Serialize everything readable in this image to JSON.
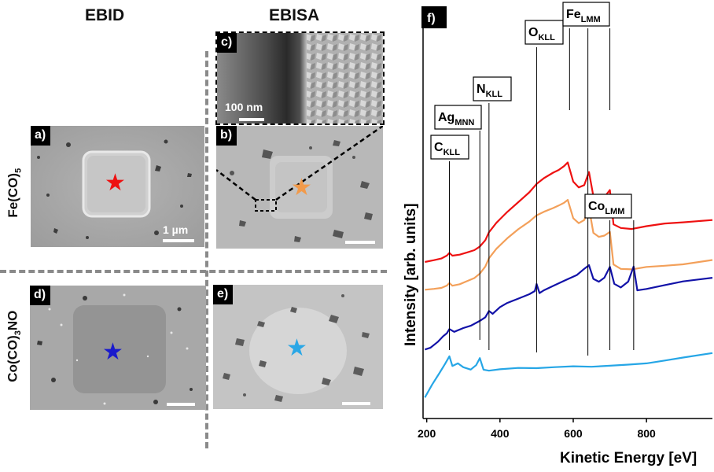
{
  "columns": {
    "left": "EBID",
    "right": "EBISA"
  },
  "rows": {
    "top": {
      "main": "Fe(CO)",
      "sub": "5",
      "tail": ""
    },
    "bottom": {
      "main": "Co(CO)",
      "sub": "3",
      "tail": "NO"
    }
  },
  "panels": {
    "a": {
      "label": "a)",
      "scale": "1 µm",
      "star_color": "#ee1111"
    },
    "b": {
      "label": "b)",
      "star_color": "#f29a4a"
    },
    "c": {
      "label": "c)",
      "scale": "100 nm"
    },
    "d": {
      "label": "d)",
      "star_color": "#1a1acc"
    },
    "e": {
      "label": "e)",
      "star_color": "#2aa7e6"
    },
    "f": {
      "label": "f)"
    }
  },
  "chart_data": {
    "type": "line",
    "xlabel": "Kinetic Energy [eV]",
    "ylabel": "Intensity  [arb. units]",
    "xlim": [
      190,
      980
    ],
    "xticks": [
      "200",
      "400",
      "600",
      "800"
    ],
    "xtick_values": [
      200,
      400,
      600,
      800
    ],
    "peak_labels": [
      {
        "main": "C",
        "sub": "KLL",
        "x": 262
      },
      {
        "main": "Ag",
        "sub": "MNN",
        "x": 345
      },
      {
        "main": "N",
        "sub": "KLL",
        "x": 370
      },
      {
        "main": "O",
        "sub": "KLL",
        "x": 500
      },
      {
        "main": "Fe",
        "sub": "LMM",
        "x": 640
      },
      {
        "main": "Co",
        "sub": "LMM",
        "x": 700
      }
    ],
    "series": [
      {
        "name": "Fe EBID",
        "color": "#ee1111",
        "x": [
          195,
          220,
          240,
          255,
          262,
          270,
          290,
          310,
          330,
          345,
          360,
          370,
          390,
          420,
          450,
          480,
          500,
          520,
          545,
          560,
          575,
          585,
          600,
          615,
          630,
          643,
          655,
          670,
          685,
          700,
          710,
          730,
          760,
          800,
          850,
          900,
          980
        ],
        "y": [
          0.1,
          0.11,
          0.12,
          0.14,
          0.16,
          0.14,
          0.15,
          0.17,
          0.19,
          0.22,
          0.27,
          0.33,
          0.4,
          0.48,
          0.55,
          0.62,
          0.68,
          0.72,
          0.76,
          0.78,
          0.81,
          0.84,
          0.7,
          0.66,
          0.68,
          0.78,
          0.6,
          0.58,
          0.59,
          0.64,
          0.38,
          0.35,
          0.34,
          0.36,
          0.38,
          0.39,
          0.41
        ]
      },
      {
        "name": "Fe EBISA",
        "color": "#f3a05a",
        "x": [
          195,
          220,
          240,
          255,
          262,
          270,
          290,
          310,
          330,
          345,
          360,
          370,
          390,
          420,
          450,
          480,
          500,
          520,
          545,
          560,
          575,
          585,
          600,
          615,
          630,
          643,
          655,
          670,
          685,
          700,
          710,
          730,
          760,
          800,
          850,
          900,
          980
        ],
        "y": [
          -0.11,
          -0.1,
          -0.09,
          -0.07,
          -0.05,
          -0.07,
          -0.06,
          -0.04,
          -0.02,
          0.01,
          0.06,
          0.12,
          0.19,
          0.27,
          0.34,
          0.4,
          0.45,
          0.48,
          0.51,
          0.53,
          0.55,
          0.57,
          0.43,
          0.39,
          0.41,
          0.5,
          0.31,
          0.28,
          0.29,
          0.32,
          0.08,
          0.05,
          0.05,
          0.07,
          0.08,
          0.09,
          0.12
        ]
      },
      {
        "name": "Co EBID",
        "color": "#1212a8",
        "x": [
          195,
          210,
          230,
          245,
          255,
          262,
          275,
          300,
          320,
          345,
          360,
          370,
          380,
          400,
          420,
          450,
          480,
          495,
          500,
          508,
          520,
          550,
          580,
          610,
          630,
          643,
          655,
          670,
          685,
          700,
          712,
          730,
          750,
          765,
          775,
          800,
          850,
          900,
          980
        ],
        "y": [
          -0.55,
          -0.54,
          -0.5,
          -0.46,
          -0.44,
          -0.41,
          -0.43,
          -0.4,
          -0.38,
          -0.34,
          -0.31,
          -0.26,
          -0.28,
          -0.23,
          -0.2,
          -0.17,
          -0.14,
          -0.12,
          -0.07,
          -0.14,
          -0.12,
          -0.08,
          -0.04,
          0.0,
          0.05,
          0.08,
          -0.02,
          -0.04,
          -0.01,
          0.07,
          -0.06,
          -0.09,
          -0.05,
          0.06,
          -0.12,
          -0.11,
          -0.08,
          -0.05,
          -0.02
        ]
      },
      {
        "name": "Co EBISA",
        "color": "#26a6e6",
        "x": [
          195,
          215,
          235,
          250,
          262,
          270,
          285,
          300,
          320,
          335,
          345,
          355,
          370,
          400,
          450,
          500,
          550,
          600,
          650,
          700,
          750,
          800,
          850,
          900,
          980
        ],
        "y": [
          -0.92,
          -0.82,
          -0.73,
          -0.66,
          -0.6,
          -0.67,
          -0.65,
          -0.68,
          -0.7,
          -0.67,
          -0.62,
          -0.71,
          -0.72,
          -0.71,
          -0.7,
          -0.7,
          -0.69,
          -0.68,
          -0.68,
          -0.67,
          -0.66,
          -0.65,
          -0.63,
          -0.61,
          -0.58
        ]
      }
    ]
  }
}
